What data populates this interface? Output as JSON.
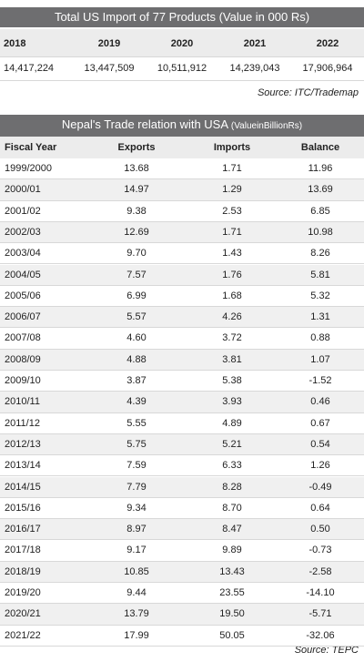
{
  "import_table": {
    "title": "Total US Import of 77 Products  (Value in 000 Rs)",
    "columns": [
      "2018",
      "2019",
      "2020",
      "2021",
      "2022"
    ],
    "values": [
      "14,417,224",
      "13,447,509",
      "10,511,912",
      "14,239,043",
      "17,906,964"
    ],
    "source": "Source: ITC/Trademap"
  },
  "trade_table": {
    "title": "Nepal's Trade relation with USA",
    "unit": "(ValueinBillionRs)",
    "columns": [
      "Fiscal Year",
      "Exports",
      "Imports",
      "Balance"
    ],
    "rows": [
      [
        "1999/2000",
        "13.68",
        "1.71",
        "11.96"
      ],
      [
        "2000/01",
        "14.97",
        "1.29",
        "13.69"
      ],
      [
        "2001/02",
        "9.38",
        "2.53",
        "6.85"
      ],
      [
        "2002/03",
        "12.69",
        "1.71",
        "10.98"
      ],
      [
        "2003/04",
        "9.70",
        "1.43",
        "8.26"
      ],
      [
        "2004/05",
        "7.57",
        "1.76",
        "5.81"
      ],
      [
        "2005/06",
        "6.99",
        "1.68",
        "5.32"
      ],
      [
        "2006/07",
        "5.57",
        "4.26",
        "1.31"
      ],
      [
        "2007/08",
        "4.60",
        "3.72",
        "0.88"
      ],
      [
        "2008/09",
        "4.88",
        "3.81",
        "1.07"
      ],
      [
        "2009/10",
        "3.87",
        "5.38",
        "-1.52"
      ],
      [
        "2010/11",
        "4.39",
        "3.93",
        "0.46"
      ],
      [
        "2011/12",
        "5.55",
        "4.89",
        "0.67"
      ],
      [
        "2012/13",
        "5.75",
        "5.21",
        "0.54"
      ],
      [
        "2013/14",
        "7.59",
        "6.33",
        "1.26"
      ],
      [
        "2014/15",
        "7.79",
        "8.28",
        "-0.49"
      ],
      [
        "2015/16",
        "9.34",
        "8.70",
        "0.64"
      ],
      [
        "2016/17",
        "8.97",
        "8.47",
        "0.50"
      ],
      [
        "2017/18",
        "9.17",
        "9.89",
        "-0.73"
      ],
      [
        "2018/19",
        "10.85",
        "13.43",
        "-2.58"
      ],
      [
        "2019/20",
        "9.44",
        "23.55",
        "-14.10"
      ],
      [
        "2020/21",
        "13.79",
        "19.50",
        "-5.71"
      ],
      [
        "2021/22",
        "17.99",
        "50.05",
        "-32.06"
      ]
    ],
    "source": "Source: TEPC"
  }
}
